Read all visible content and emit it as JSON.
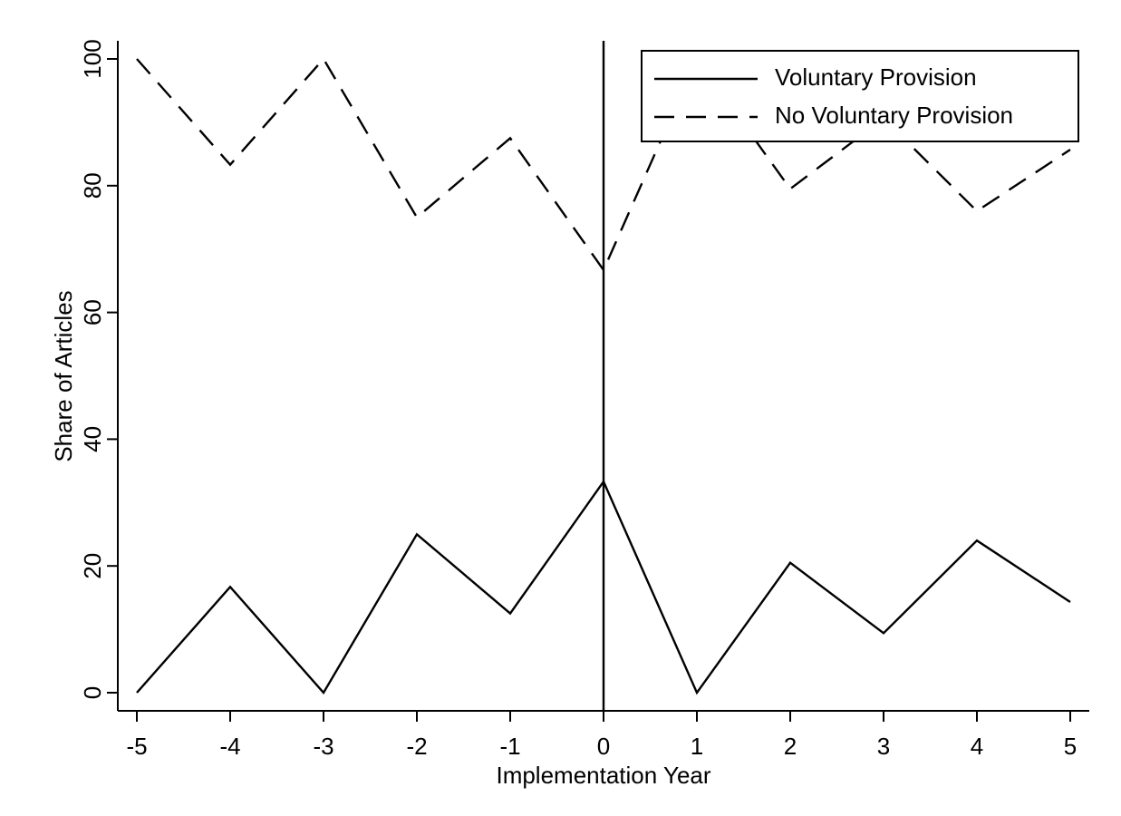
{
  "chart_data": {
    "type": "line",
    "xlabel": "Implementation Year",
    "ylabel": "Share of Articles",
    "xlim": [
      -5,
      5
    ],
    "ylim": [
      0,
      100
    ],
    "x_ticks": [
      -5,
      -4,
      -3,
      -2,
      -1,
      0,
      1,
      2,
      3,
      4,
      5
    ],
    "y_ticks": [
      0,
      20,
      40,
      60,
      80,
      100
    ],
    "x": [
      -5,
      -4,
      -3,
      -2,
      -1,
      0,
      1,
      2,
      3,
      4,
      5
    ],
    "series": [
      {
        "name": "Voluntary Provision",
        "style": "solid",
        "values": [
          0,
          16.7,
          0,
          25,
          12.5,
          33.3,
          0,
          20.5,
          9.4,
          24,
          14.3
        ]
      },
      {
        "name": "No Voluntary Provision",
        "style": "dashed",
        "values": [
          100,
          83.3,
          100,
          75,
          87.5,
          66.7,
          100,
          79.5,
          90.6,
          76,
          85.7
        ]
      }
    ],
    "reference_line_x": 0,
    "legend_position": "top-right",
    "grid": false,
    "line_color": "#000000"
  }
}
